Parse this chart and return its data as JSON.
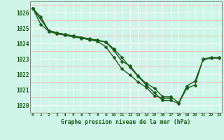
{
  "title": "Graphe pression niveau de la mer (hPa)",
  "bg_color": "#cef5e7",
  "line_color": "#1a5c1a",
  "marker": "D",
  "markersize": 2.5,
  "linewidth": 1.0,
  "ylim": [
    1019.5,
    1026.75
  ],
  "xlim": [
    -0.3,
    23.3
  ],
  "series": [
    {
      "x": [
        0,
        1,
        2,
        3,
        4,
        5,
        6,
        7,
        8,
        9,
        10,
        11,
        12,
        13,
        14,
        15,
        16,
        17,
        18,
        19,
        20,
        21,
        22,
        23
      ],
      "y": [
        1026.3,
        1025.75,
        1024.8,
        1024.65,
        1024.55,
        1024.45,
        1024.38,
        1024.3,
        1024.22,
        1024.1,
        1023.55,
        1022.85,
        1022.55,
        1021.9,
        1021.4,
        1021.1,
        1020.55,
        1020.55,
        1020.15,
        1021.25,
        1021.55,
        1022.95,
        1023.05,
        1023.05
      ]
    },
    {
      "x": [
        0,
        1,
        2,
        3,
        4,
        5,
        6,
        7,
        8,
        9,
        10,
        11,
        12,
        13,
        14,
        15,
        16,
        17
      ],
      "y": [
        1026.3,
        1025.25,
        1024.8,
        1024.65,
        1024.55,
        1024.45,
        1024.35,
        1024.25,
        1024.15,
        1023.8,
        1023.1,
        1022.35,
        1021.95,
        1021.5,
        1021.15,
        1020.6,
        1020.45,
        1020.45
      ]
    },
    {
      "x": [
        0,
        2,
        3,
        4,
        5,
        6,
        7,
        8,
        9,
        10
      ],
      "y": [
        1026.3,
        1024.85,
        1024.7,
        1024.6,
        1024.5,
        1024.4,
        1024.32,
        1024.22,
        1024.12,
        1023.65
      ]
    },
    {
      "x": [
        0,
        2,
        3,
        4,
        5,
        6,
        7,
        8,
        9,
        10,
        11,
        12,
        13,
        14,
        15,
        16,
        17,
        18,
        19,
        20,
        21,
        22,
        23
      ],
      "y": [
        1026.3,
        1024.85,
        1024.7,
        1024.6,
        1024.5,
        1024.4,
        1024.3,
        1024.2,
        1024.1,
        1023.65,
        1023.1,
        1022.45,
        1021.85,
        1021.3,
        1020.8,
        1020.3,
        1020.3,
        1020.1,
        1021.1,
        1021.3,
        1023.0,
        1023.1,
        1023.1
      ]
    }
  ],
  "yticks": [
    1020,
    1021,
    1022,
    1023,
    1024,
    1025,
    1026
  ],
  "xticks": [
    0,
    1,
    2,
    3,
    4,
    5,
    6,
    7,
    8,
    9,
    10,
    11,
    12,
    13,
    14,
    15,
    16,
    17,
    18,
    19,
    20,
    21,
    22,
    23
  ]
}
